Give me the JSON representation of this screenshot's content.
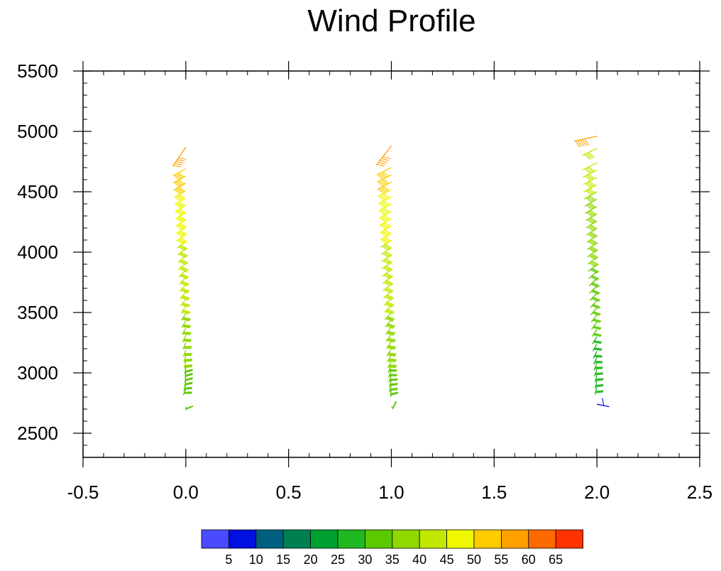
{
  "chart_data": {
    "type": "wind_barb",
    "title": "Wind Profile",
    "xlim": [
      -0.5,
      2.5
    ],
    "ylim": [
      2300,
      5500
    ],
    "xticks": [
      "-0.5",
      "0.0",
      "0.5",
      "1.0",
      "1.5",
      "2.0",
      "2.5"
    ],
    "yticks": [
      "2500",
      "3000",
      "3500",
      "4000",
      "4500",
      "5000",
      "5500"
    ],
    "colorbar": {
      "labels": [
        "5",
        "10",
        "15",
        "20",
        "25",
        "30",
        "35",
        "40",
        "45",
        "50",
        "55",
        "60",
        "65"
      ],
      "colors": [
        "#4a4aff",
        "#0010e0",
        "#005f7f",
        "#008050",
        "#00a030",
        "#20b820",
        "#5cc800",
        "#90d800",
        "#c0e800",
        "#f0f800",
        "#ffcc00",
        "#ffa000",
        "#ff6a00",
        "#ff3300"
      ]
    },
    "profiles": [
      {
        "x": 0.0,
        "heights": [
          2720,
          2870,
          2905,
          2940,
          2975,
          3010,
          3045,
          3090,
          3140,
          3190,
          3250,
          3310,
          3370,
          3430,
          3490,
          3550,
          3610,
          3670,
          3730,
          3790,
          3850,
          3910,
          3970,
          4030,
          4090,
          4150,
          4210,
          4270,
          4330,
          4390,
          4450,
          4510,
          4570,
          4630,
          4690,
          4870
        ],
        "speeds": [
          30,
          31,
          32,
          33,
          33,
          34,
          34,
          35,
          36,
          36,
          37,
          38,
          38,
          39,
          39,
          40,
          40,
          41,
          41,
          42,
          42,
          43,
          43,
          44,
          44,
          45,
          45,
          46,
          46,
          47,
          48,
          49,
          50,
          51,
          52,
          55
        ],
        "dx": [
          0.0,
          -0.012,
          -0.01,
          -0.006,
          -0.004,
          -0.003,
          -0.005,
          -0.008,
          -0.01,
          -0.012,
          -0.014,
          -0.016,
          -0.018,
          -0.02,
          -0.022,
          -0.024,
          -0.026,
          -0.028,
          -0.03,
          -0.032,
          -0.034,
          -0.036,
          -0.038,
          -0.04,
          -0.042,
          -0.044,
          -0.046,
          -0.048,
          -0.05,
          -0.052,
          -0.054,
          -0.056,
          -0.058,
          -0.06,
          -0.062,
          -0.064
        ],
        "dy": [
          -30,
          -55,
          -55,
          -55,
          -55,
          -55,
          -55,
          -55,
          -55,
          -55,
          -55,
          -55,
          -55,
          -55,
          -55,
          -55,
          -55,
          -55,
          -55,
          -55,
          -55,
          -55,
          -55,
          -55,
          -55,
          -55,
          -55,
          -55,
          -55,
          -55,
          -55,
          -55,
          -55,
          -55,
          -55,
          -160
        ]
      },
      {
        "x": 1.0,
        "heights": [
          2720,
          2860,
          2900,
          2940,
          2980,
          3020,
          3060,
          3100,
          3150,
          3200,
          3260,
          3320,
          3380,
          3440,
          3500,
          3560,
          3620,
          3680,
          3740,
          3800,
          3860,
          3920,
          3980,
          4040,
          4100,
          4160,
          4220,
          4280,
          4340,
          4400,
          4460,
          4520,
          4580,
          4640,
          4700,
          4880
        ],
        "speeds": [
          30,
          31,
          32,
          33,
          33,
          34,
          34,
          35,
          36,
          36,
          37,
          38,
          38,
          39,
          39,
          40,
          40,
          41,
          41,
          42,
          42,
          43,
          43,
          44,
          44,
          45,
          45,
          46,
          47,
          47,
          48,
          49,
          50,
          51,
          52,
          55
        ],
        "dx": [
          0.01,
          -0.005,
          -0.01,
          -0.01,
          -0.012,
          -0.014,
          -0.016,
          -0.018,
          -0.02,
          -0.022,
          -0.024,
          -0.026,
          -0.028,
          -0.03,
          -0.032,
          -0.034,
          -0.036,
          -0.038,
          -0.04,
          -0.042,
          -0.044,
          -0.046,
          -0.048,
          -0.05,
          -0.052,
          -0.054,
          -0.056,
          -0.058,
          -0.06,
          -0.062,
          -0.064,
          -0.066,
          -0.068,
          -0.07,
          -0.072,
          -0.074
        ],
        "dy": [
          -20,
          -60,
          -60,
          -60,
          -60,
          -60,
          -60,
          -60,
          -60,
          -60,
          -60,
          -60,
          -60,
          -60,
          -60,
          -60,
          -60,
          -60,
          -60,
          -60,
          -60,
          -60,
          -60,
          -60,
          -60,
          -60,
          -60,
          -60,
          -60,
          -60,
          -60,
          -60,
          -60,
          -60,
          -60,
          -160
        ]
      },
      {
        "x": 2.0,
        "heights": [
          2740,
          2880,
          2930,
          2980,
          3030,
          3080,
          3130,
          3180,
          3240,
          3300,
          3360,
          3420,
          3480,
          3540,
          3600,
          3660,
          3720,
          3780,
          3840,
          3900,
          3960,
          4020,
          4080,
          4140,
          4200,
          4260,
          4320,
          4380,
          4440,
          4500,
          4560,
          4620,
          4680,
          4740,
          4860,
          4960
        ],
        "speeds": [
          5,
          25,
          25,
          26,
          27,
          27,
          28,
          28,
          29,
          29,
          30,
          30,
          31,
          31,
          32,
          32,
          33,
          33,
          34,
          34,
          35,
          35,
          36,
          36,
          37,
          37,
          38,
          38,
          39,
          39,
          40,
          40,
          41,
          42,
          43,
          58
        ],
        "dx": [
          0.06,
          -0.01,
          -0.01,
          -0.01,
          -0.012,
          -0.014,
          -0.016,
          -0.018,
          -0.02,
          -0.022,
          -0.024,
          -0.026,
          -0.028,
          -0.03,
          -0.032,
          -0.034,
          -0.036,
          -0.038,
          -0.04,
          -0.042,
          -0.044,
          -0.046,
          -0.048,
          -0.05,
          -0.052,
          -0.054,
          -0.056,
          -0.058,
          -0.06,
          -0.062,
          -0.064,
          -0.066,
          -0.068,
          -0.07,
          -0.072,
          -0.11
        ],
        "dy": [
          -20,
          -60,
          -60,
          -60,
          -60,
          -60,
          -60,
          -60,
          -60,
          -60,
          -60,
          -60,
          -60,
          -60,
          -60,
          -60,
          -60,
          -60,
          -60,
          -60,
          -60,
          -60,
          -60,
          -60,
          -60,
          -60,
          -60,
          -60,
          -60,
          -60,
          -60,
          -60,
          -60,
          -60,
          -60,
          -40
        ]
      }
    ]
  }
}
